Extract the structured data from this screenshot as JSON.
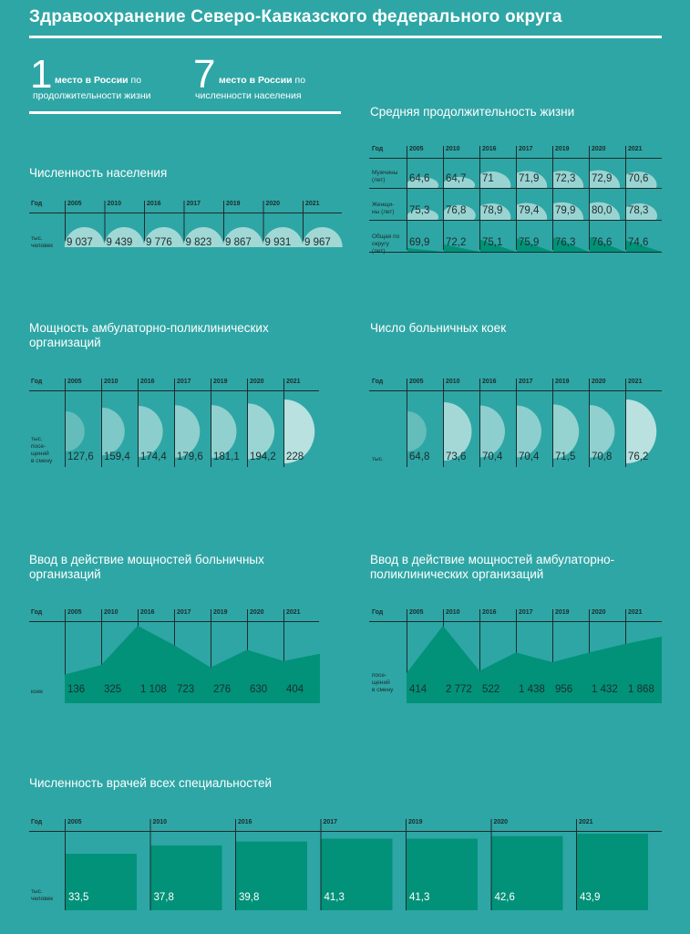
{
  "header": {
    "title": "Здравоохранение Северо-Кавказского федерального округа"
  },
  "ranks": [
    {
      "number": "1",
      "line1_bold": "место в России",
      "line1_rest": " по",
      "line2": "продолжительности жизни"
    },
    {
      "number": "7",
      "line1_bold": "место в России",
      "line1_rest": " по",
      "line2": "численности населения"
    }
  ],
  "colors": {
    "background": "#2ea6a5",
    "dark_green": "#019279",
    "text_dark": "#1d2b2b",
    "light_shape": "#c8e8e6"
  },
  "tables": {
    "population": {
      "title": "Численность населения",
      "year_label": "Год",
      "unit": "тыс.\nчеловек",
      "years": [
        "2005",
        "2010",
        "2016",
        "2017",
        "2019",
        "2020",
        "2021"
      ],
      "values": [
        "9 037",
        "9 439",
        "9 776",
        "9 823",
        "9 867",
        "9 931",
        "9 967"
      ]
    },
    "life": {
      "title": "Средняя продолжительность жизни",
      "year_label": "Год",
      "years": [
        "2005",
        "2010",
        "2016",
        "2017",
        "2019",
        "2020",
        "2021"
      ],
      "rows": [
        {
          "label": "Мужчины\n(лет)",
          "values": [
            "64,6",
            "64,7",
            "71",
            "71,9",
            "72,3",
            "72,9",
            "70,6"
          ]
        },
        {
          "label": "Женщи-\nны (лет)",
          "values": [
            "75,3",
            "76,8",
            "78,9",
            "79,4",
            "79,9",
            "80,0",
            "78,3"
          ]
        },
        {
          "label": "Общая по\nокругу\n(лет)",
          "values": [
            "69,9",
            "72,2",
            "75,1",
            "75,9",
            "76,3",
            "76,6",
            "74,6"
          ]
        }
      ]
    },
    "ambulatory": {
      "title": "Мощность амбулаторно-поликлинических организаций",
      "year_label": "Год",
      "unit": "тыс.\nпосе-\nщений\nв смену",
      "years": [
        "2005",
        "2010",
        "2016",
        "2017",
        "2019",
        "2020",
        "2021"
      ],
      "values": [
        "127,6",
        "159,4",
        "174,4",
        "179,6",
        "181,1",
        "194,2",
        "228"
      ]
    },
    "beds": {
      "title": "Число больничных коек",
      "year_label": "Год",
      "unit": "тыс.",
      "years": [
        "2005",
        "2010",
        "2016",
        "2017",
        "2019",
        "2020",
        "2021"
      ],
      "values": [
        "64,8",
        "73,6",
        "70,4",
        "70,4",
        "71,5",
        "70,8",
        "76,2"
      ]
    },
    "hospital_input": {
      "title": "Ввод в действие мощностей больничных организаций",
      "year_label": "Год",
      "unit": "коек",
      "years": [
        "2005",
        "2010",
        "2016",
        "2017",
        "2019",
        "2020",
        "2021"
      ],
      "values": [
        "136",
        "325",
        "1 108",
        "723",
        "276",
        "630",
        "404"
      ]
    },
    "amb_input": {
      "title": "Ввод в действие мощностей амбулаторно-поликлинических организаций",
      "year_label": "Год",
      "unit": "посе-\nщений\nв смену",
      "years": [
        "2005",
        "2010",
        "2016",
        "2017",
        "2019",
        "2020",
        "2021"
      ],
      "values": [
        "414",
        "2 772",
        "522",
        "1 438",
        "956",
        "1 432",
        "1 868"
      ]
    },
    "doctors": {
      "title": "Численность врачей всех специальностей",
      "year_label": "Год",
      "unit": "тыс.\nчеловек",
      "years": [
        "2005",
        "2010",
        "2016",
        "2017",
        "2019",
        "2020",
        "2021"
      ],
      "values": [
        "33,5",
        "37,8",
        "39,8",
        "41,3",
        "41,3",
        "42,6",
        "43,9"
      ]
    }
  },
  "chart_data": [
    {
      "type": "table",
      "title": "Численность населения",
      "categories": [
        "2005",
        "2010",
        "2016",
        "2017",
        "2019",
        "2020",
        "2021"
      ],
      "values": [
        9037,
        9439,
        9776,
        9823,
        9867,
        9931,
        9967
      ]
    },
    {
      "type": "table",
      "title": "Средняя продолжительность жизни",
      "categories": [
        "2005",
        "2010",
        "2016",
        "2017",
        "2019",
        "2020",
        "2021"
      ],
      "series": [
        {
          "name": "Мужчины (лет)",
          "values": [
            64.6,
            64.7,
            71,
            71.9,
            72.3,
            72.9,
            70.6
          ]
        },
        {
          "name": "Женщины (лет)",
          "values": [
            75.3,
            76.8,
            78.9,
            79.4,
            79.9,
            80.0,
            78.3
          ]
        },
        {
          "name": "Общая по округу (лет)",
          "values": [
            69.9,
            72.2,
            75.1,
            75.9,
            76.3,
            76.6,
            74.6
          ]
        }
      ]
    },
    {
      "type": "table",
      "title": "Мощность амбулаторно-поликлинических организаций",
      "categories": [
        "2005",
        "2010",
        "2016",
        "2017",
        "2019",
        "2020",
        "2021"
      ],
      "values": [
        127.6,
        159.4,
        174.4,
        179.6,
        181.1,
        194.2,
        228
      ]
    },
    {
      "type": "table",
      "title": "Число больничных коек",
      "categories": [
        "2005",
        "2010",
        "2016",
        "2017",
        "2019",
        "2020",
        "2021"
      ],
      "values": [
        64.8,
        73.6,
        70.4,
        70.4,
        71.5,
        70.8,
        76.2
      ]
    },
    {
      "type": "area",
      "title": "Ввод в действие мощностей больничных организаций",
      "categories": [
        "2005",
        "2010",
        "2016",
        "2017",
        "2019",
        "2020",
        "2021"
      ],
      "values": [
        136,
        325,
        1108,
        723,
        276,
        630,
        404
      ]
    },
    {
      "type": "area",
      "title": "Ввод в действие мощностей амбулаторно-поликлинических организаций",
      "categories": [
        "2005",
        "2010",
        "2016",
        "2017",
        "2019",
        "2020",
        "2021"
      ],
      "values": [
        414,
        2772,
        522,
        1438,
        956,
        1432,
        1868
      ]
    },
    {
      "type": "bar",
      "title": "Численность врачей всех специальностей",
      "categories": [
        "2005",
        "2010",
        "2016",
        "2017",
        "2019",
        "2020",
        "2021"
      ],
      "values": [
        33.5,
        37.8,
        39.8,
        41.3,
        41.3,
        42.6,
        43.9
      ]
    }
  ]
}
